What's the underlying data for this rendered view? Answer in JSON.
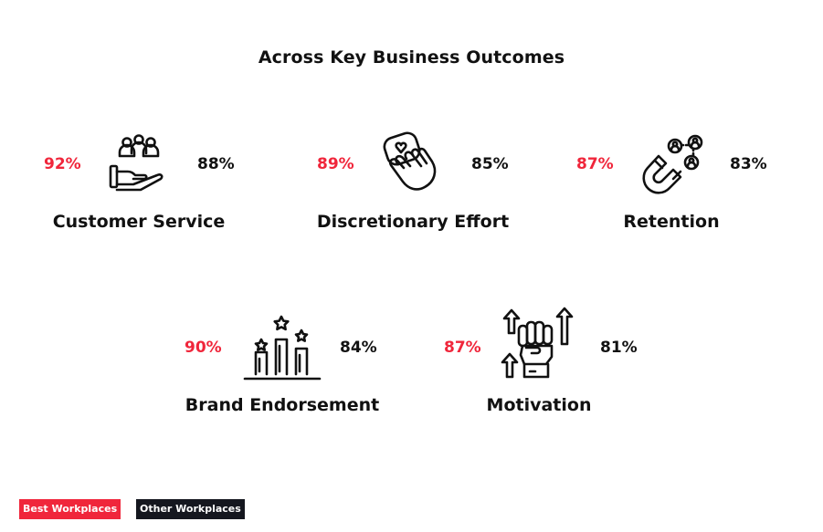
{
  "title": "Across Key Business Outcomes",
  "legend": {
    "best_label": "Best Workplaces",
    "best_color": "#f0263b",
    "other_label": "Other Workplaces",
    "other_color": "#15171f"
  },
  "chart_data": {
    "type": "table",
    "title": "Across Key Business Outcomes",
    "series": [
      {
        "name": "Best Workplaces",
        "color": "#f0263b",
        "values": [
          "92%",
          "89%",
          "87%",
          "90%",
          "87%"
        ]
      },
      {
        "name": "Other Workplaces",
        "color": "#111111",
        "values": [
          "88%",
          "85%",
          "83%",
          "84%",
          "81%"
        ]
      }
    ],
    "categories": [
      "Customer Service",
      "Discretionary Effort",
      "Retention",
      "Brand Endorsement",
      "Motivation"
    ],
    "items": [
      {
        "label": "Customer Service",
        "best": "92%",
        "other": "88%",
        "icon": "helping-hand-people-icon"
      },
      {
        "label": "Discretionary Effort",
        "best": "89%",
        "other": "85%",
        "icon": "hand-heart-icon"
      },
      {
        "label": "Retention",
        "best": "87%",
        "other": "83%",
        "icon": "magnet-people-icon"
      },
      {
        "label": "Brand Endorsement",
        "best": "90%",
        "other": "84%",
        "icon": "podium-stars-icon"
      },
      {
        "label": "Motivation",
        "best": "87%",
        "other": "81%",
        "icon": "fist-arrows-icon"
      }
    ]
  }
}
